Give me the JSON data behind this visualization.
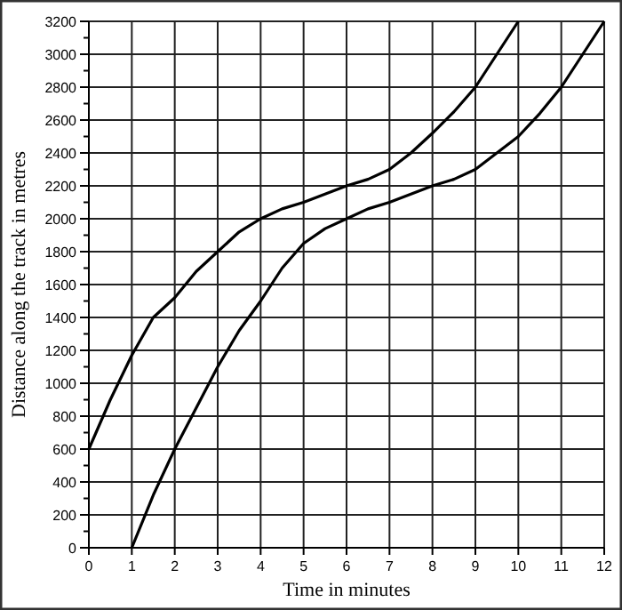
{
  "chart_data": {
    "type": "line",
    "xlabel": "Time in minutes",
    "ylabel": "Distance along the track in metres",
    "xlim": [
      0,
      12
    ],
    "xticks": [
      0,
      1,
      2,
      3,
      4,
      5,
      6,
      7,
      8,
      9,
      10,
      11,
      12
    ],
    "ylim": [
      0,
      3200
    ],
    "yticks": [
      0,
      {
        "value": 100,
        "label": null
      },
      200,
      {
        "value": 300,
        "label": null
      },
      400,
      {
        "value": 500,
        "label": null
      },
      600,
      {
        "value": 700,
        "label": null
      },
      800,
      {
        "value": 900,
        "label": null
      },
      1000,
      {
        "value": 1100,
        "label": null
      },
      1200,
      {
        "value": 1300,
        "label": null
      },
      1400,
      {
        "value": 1500,
        "label": null
      },
      1600,
      {
        "value": 1700,
        "label": null
      },
      1800,
      {
        "value": 1900,
        "label": null
      },
      2000,
      {
        "value": 2100,
        "label": null
      },
      2200,
      {
        "value": 2300,
        "label": null
      },
      2400,
      {
        "value": 2500,
        "label": null
      },
      2600,
      {
        "value": 2700,
        "label": null
      },
      2800,
      {
        "value": 2900,
        "label": null
      },
      3000,
      {
        "value": 3100,
        "label": null
      },
      3200
    ],
    "grid": true,
    "marker": "none",
    "line_style": "solid",
    "series": [
      {
        "color": "#000000",
        "x": [
          0,
          0.5,
          1,
          1.5,
          2,
          2.5,
          3,
          3.5,
          4,
          4.5,
          5,
          5.5,
          6,
          6.5,
          7,
          7.5,
          8,
          8.5,
          9,
          9.5,
          10
        ],
        "values": [
          600,
          900,
          1170,
          1400,
          1520,
          1680,
          1800,
          1920,
          2000,
          2060,
          2100,
          2150,
          2200,
          2240,
          2300,
          2400,
          2520,
          2650,
          2800,
          3000,
          3200
        ]
      },
      {
        "color": "#000000",
        "x": [
          1,
          1.5,
          2,
          2.5,
          3,
          3.5,
          4,
          4.5,
          5,
          5.5,
          6,
          6.5,
          7,
          7.5,
          8,
          8.5,
          9,
          9.5,
          10,
          10.5,
          11,
          11.5,
          12
        ],
        "values": [
          0,
          320,
          600,
          850,
          1100,
          1320,
          1500,
          1700,
          1850,
          1940,
          2000,
          2060,
          2100,
          2150,
          2200,
          2240,
          2300,
          2400,
          2500,
          2640,
          2800,
          3000,
          3200
        ]
      }
    ]
  }
}
